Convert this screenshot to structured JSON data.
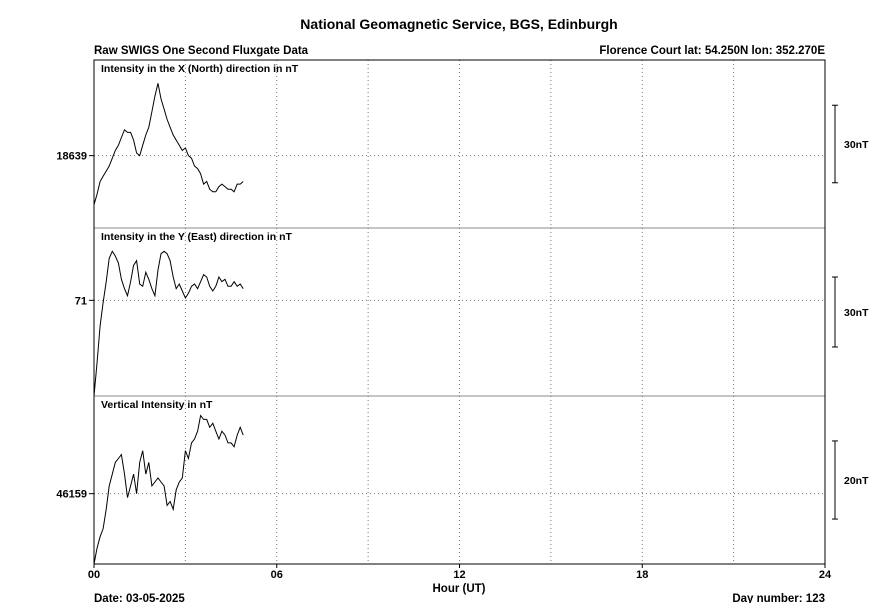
{
  "header": {
    "title": "National Geomagnetic Service, BGS, Edinburgh",
    "subtitle_left": "Raw SWIGS One Second Fluxgate Data",
    "subtitle_right": "Florence Court  lat: 54.250N lon: 352.270E"
  },
  "footer": {
    "date": "Date: 03-05-2025",
    "day_number": "Day number:  123"
  },
  "chart_data": {
    "type": "line",
    "xlabel": "Hour (UT)",
    "xlim": [
      0,
      24
    ],
    "x_ticks": [
      "00",
      "06",
      "12",
      "18",
      "24"
    ],
    "x_tick_values": [
      0,
      6,
      12,
      18,
      24
    ],
    "grid": true,
    "panels": [
      {
        "title": "Intensity in the X (North) direction in nT",
        "y_tick_label": "18639",
        "y_tick_value": 18639,
        "scale_bar": "30nT",
        "scale_bar_nT": 30,
        "ylim": [
          18611,
          18676
        ],
        "series": [
          {
            "x": [
              0.0,
              0.1,
              0.2,
              0.3,
              0.4,
              0.5,
              0.6,
              0.7,
              0.8,
              0.9,
              1.0,
              1.1,
              1.2,
              1.3,
              1.4,
              1.5,
              1.6,
              1.7,
              1.8,
              1.9,
              2.0,
              2.1,
              2.2,
              2.3,
              2.4,
              2.5,
              2.6,
              2.7,
              2.8,
              2.9,
              3.0,
              3.1,
              3.2,
              3.3,
              3.4,
              3.5,
              3.6,
              3.7,
              3.8,
              3.9,
              4.0,
              4.1,
              4.2,
              4.3,
              4.4,
              4.5,
              4.6,
              4.7,
              4.8,
              4.9
            ],
            "y": [
              18620,
              18624,
              18629,
              18631,
              18633,
              18635,
              18638,
              18641,
              18643,
              18646,
              18649,
              18648,
              18648,
              18645,
              18640,
              18639,
              18643,
              18647,
              18650,
              18656,
              18662,
              18667,
              18661,
              18657,
              18653,
              18650,
              18647,
              18645,
              18643,
              18641,
              18642,
              18639,
              18638,
              18635,
              18634,
              18632,
              18628,
              18629,
              18626,
              18625,
              18625,
              18627,
              18628,
              18627,
              18626,
              18626,
              18625,
              18628,
              18628,
              18629
            ]
          }
        ]
      },
      {
        "title": "Intensity in the Y (East) direction in nT",
        "y_tick_label": "71",
        "y_tick_value": 71,
        "scale_bar": "30nT",
        "scale_bar_nT": 30,
        "ylim": [
          30,
          102
        ],
        "series": [
          {
            "x": [
              0.0,
              0.1,
              0.2,
              0.3,
              0.4,
              0.5,
              0.6,
              0.7,
              0.8,
              0.9,
              1.0,
              1.1,
              1.2,
              1.3,
              1.4,
              1.5,
              1.6,
              1.7,
              1.8,
              1.9,
              2.0,
              2.1,
              2.2,
              2.3,
              2.4,
              2.5,
              2.6,
              2.7,
              2.8,
              2.9,
              3.0,
              3.1,
              3.2,
              3.3,
              3.4,
              3.5,
              3.6,
              3.7,
              3.8,
              3.9,
              4.0,
              4.1,
              4.2,
              4.3,
              4.4,
              4.5,
              4.6,
              4.7,
              4.8,
              4.9
            ],
            "y": [
              30,
              44,
              60,
              70,
              79,
              89,
              92,
              90,
              87,
              80,
              76,
              73,
              79,
              86,
              88,
              78,
              77,
              83,
              80,
              76,
              73,
              84,
              91,
              92,
              91,
              88,
              81,
              76,
              78,
              75,
              72,
              74,
              77,
              78,
              76,
              79,
              82,
              81,
              77,
              75,
              77,
              81,
              79,
              80,
              77,
              77,
              79,
              77,
              78,
              76
            ]
          }
        ]
      },
      {
        "title": "Vertical Intensity in nT",
        "y_tick_label": "46159",
        "y_tick_value": 46159,
        "scale_bar": "20nT",
        "scale_bar_nT": 20,
        "ylim": [
          46141,
          46184
        ],
        "series": [
          {
            "x": [
              0.0,
              0.1,
              0.2,
              0.3,
              0.4,
              0.5,
              0.6,
              0.7,
              0.8,
              0.9,
              1.0,
              1.1,
              1.2,
              1.3,
              1.4,
              1.5,
              1.6,
              1.7,
              1.8,
              1.9,
              2.0,
              2.1,
              2.2,
              2.3,
              2.4,
              2.5,
              2.6,
              2.7,
              2.8,
              2.9,
              3.0,
              3.1,
              3.2,
              3.3,
              3.4,
              3.5,
              3.6,
              3.7,
              3.8,
              3.9,
              4.0,
              4.1,
              4.2,
              4.3,
              4.4,
              4.5,
              4.6,
              4.7,
              4.8,
              4.9
            ],
            "y": [
              46141,
              46145,
              46148,
              46150,
              46155,
              46161,
              46164,
              46167,
              46168,
              46169,
              46164,
              46158,
              46161,
              46164,
              46159,
              46167,
              46170,
              46164,
              46167,
              46161,
              46162,
              46163,
              46162,
              46161,
              46156,
              46157,
              46155,
              46160,
              46162,
              46163,
              46170,
              46168,
              46172,
              46173,
              46175,
              46179,
              46178,
              46178,
              46176,
              46177,
              46175,
              46173,
              46175,
              46174,
              46172,
              46172,
              46171,
              46174,
              46176,
              46174
            ]
          }
        ]
      }
    ]
  }
}
